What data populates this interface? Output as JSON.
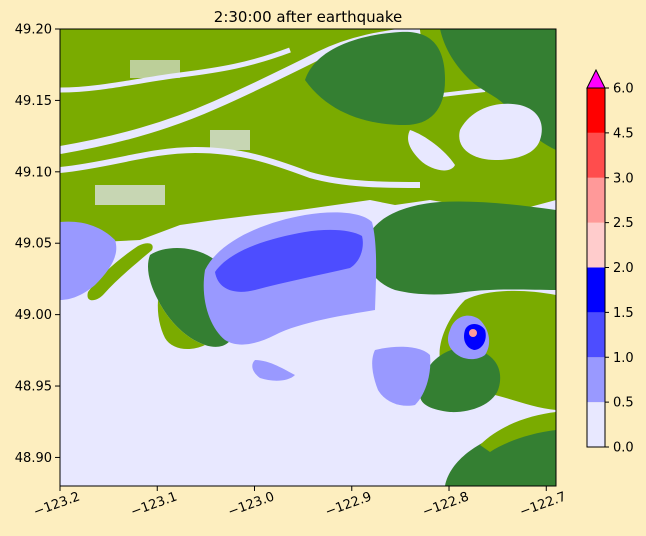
{
  "title": "2:30:00 after earthquake",
  "axes": {
    "x_ticks": [
      "−123.2",
      "−123.1",
      "−123.0",
      "−122.9",
      "−122.8",
      "−122.7"
    ],
    "x_values": [
      -123.2,
      -123.1,
      -123.0,
      -122.9,
      -122.8,
      -122.7
    ],
    "y_ticks": [
      "49.20",
      "49.15",
      "49.10",
      "49.05",
      "49.00",
      "48.95",
      "48.90"
    ],
    "y_values": [
      49.2,
      49.15,
      49.1,
      49.05,
      49.0,
      48.95,
      48.9
    ],
    "xlim": [
      -123.2,
      -122.69
    ],
    "ylim": [
      48.88,
      49.2
    ]
  },
  "colorbar": {
    "labels": [
      "0.0",
      "0.5",
      "1.0",
      "1.5",
      "2.0",
      "2.5",
      "3.0",
      "4.5",
      "6.0"
    ],
    "bins": [
      {
        "from": 0.0,
        "to": 0.5,
        "color": "#e8e8ff"
      },
      {
        "from": 0.5,
        "to": 1.0,
        "color": "#9999ff"
      },
      {
        "from": 1.0,
        "to": 1.5,
        "color": "#4d4dff"
      },
      {
        "from": 1.5,
        "to": 2.0,
        "color": "#0000ff"
      },
      {
        "from": 2.0,
        "to": 2.5,
        "color": "#ffcccc"
      },
      {
        "from": 2.5,
        "to": 3.0,
        "color": "#ff9999"
      },
      {
        "from": 3.0,
        "to": 4.5,
        "color": "#ff4d4d"
      },
      {
        "from": 4.5,
        "to": 6.0,
        "color": "#ff0000"
      }
    ],
    "extend_color": "#ff00ff"
  },
  "colors": {
    "water_shallow": "#e8e8ff",
    "flood_0_5": "#9999ff",
    "flood_1_0": "#4d4dff",
    "flood_1_5": "#0000ff",
    "land_low": "#7aab00",
    "land_high": "#347f32",
    "background": "#fdeebf"
  }
}
